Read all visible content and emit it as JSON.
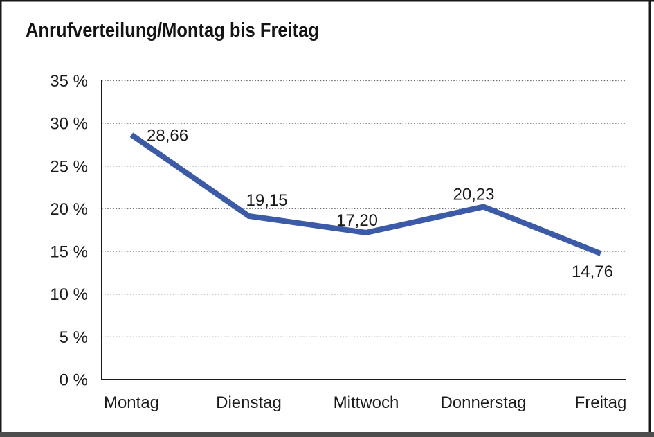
{
  "window": {
    "background": "#ffffff",
    "frame_color": "#1a1a1a",
    "bottom_bar_color": "#4d4d4d"
  },
  "chart_data": {
    "type": "line",
    "title": "Anrufverteilung/Montag bis Freitag",
    "categories": [
      "Montag",
      "Dienstag",
      "Mittwoch",
      "Donnerstag",
      "Freitag"
    ],
    "series": [
      {
        "name": "Anrufverteilung",
        "values": [
          28.66,
          19.15,
          17.2,
          20.23,
          14.76
        ],
        "data_labels": [
          "28,66",
          "19,15",
          "17,20",
          "20,23",
          "14,76"
        ]
      }
    ],
    "xlabel": "",
    "ylabel": "",
    "ylim": [
      0,
      35
    ],
    "y_tick_step": 5,
    "y_tick_labels": [
      "0 %",
      "5 %",
      "10 %",
      "15 %",
      "20 %",
      "25 %",
      "30 %",
      "35 %"
    ],
    "grid": "horizontal-dotted",
    "legend": "none",
    "line_color": "#3B5BA9",
    "axis_color": "#1a1a1a",
    "gridline_color": "#666666",
    "text_color": "#1a1a1a"
  }
}
